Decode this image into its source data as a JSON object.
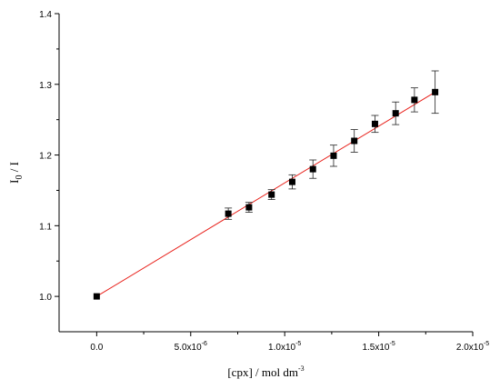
{
  "chart_data": {
    "type": "scatter",
    "title": "",
    "xlabel": "[cpx] / mol dm",
    "xlabel_sup": "-3",
    "ylabel_main": "I",
    "ylabel_sub": "0",
    "ylabel_tail": " / I",
    "xlim": [
      -2e-06,
      2e-05
    ],
    "ylim": [
      0.95,
      1.4
    ],
    "x_ticks": [
      {
        "value": 0,
        "label": "0.0",
        "sup": ""
      },
      {
        "value": 5e-06,
        "label": "5.0x10",
        "sup": "-6"
      },
      {
        "value": 1e-05,
        "label": "1.0x10",
        "sup": "-5"
      },
      {
        "value": 1.5e-05,
        "label": "1.5x10",
        "sup": "-5"
      },
      {
        "value": 2e-05,
        "label": "2.0x10",
        "sup": "-5"
      }
    ],
    "y_ticks": [
      {
        "value": 1.0,
        "label": "1.0"
      },
      {
        "value": 1.1,
        "label": "1.1"
      },
      {
        "value": 1.2,
        "label": "1.2"
      },
      {
        "value": 1.3,
        "label": "1.3"
      },
      {
        "value": 1.4,
        "label": "1.4"
      }
    ],
    "series": [
      {
        "points": [
          {
            "x": 0.0,
            "y": 1.0,
            "err": 0.0
          },
          {
            "x": 7e-06,
            "y": 1.117,
            "err": 0.008
          },
          {
            "x": 8.1e-06,
            "y": 1.126,
            "err": 0.007
          },
          {
            "x": 9.3e-06,
            "y": 1.144,
            "err": 0.007
          },
          {
            "x": 1.04e-05,
            "y": 1.162,
            "err": 0.01
          },
          {
            "x": 1.15e-05,
            "y": 1.18,
            "err": 0.013
          },
          {
            "x": 1.26e-05,
            "y": 1.199,
            "err": 0.015
          },
          {
            "x": 1.37e-05,
            "y": 1.22,
            "err": 0.016
          },
          {
            "x": 1.48e-05,
            "y": 1.244,
            "err": 0.012
          },
          {
            "x": 1.59e-05,
            "y": 1.259,
            "err": 0.016
          },
          {
            "x": 1.69e-05,
            "y": 1.278,
            "err": 0.017
          },
          {
            "x": 1.8e-05,
            "y": 1.289,
            "err": 0.03
          }
        ]
      }
    ],
    "fit_line": {
      "x": [
        0.0,
        1.8e-05
      ],
      "y": [
        1.0,
        1.289
      ]
    },
    "colors": {
      "marker": "#000000",
      "fit": "#e8201a",
      "axis": "#000000"
    },
    "grid": false
  }
}
